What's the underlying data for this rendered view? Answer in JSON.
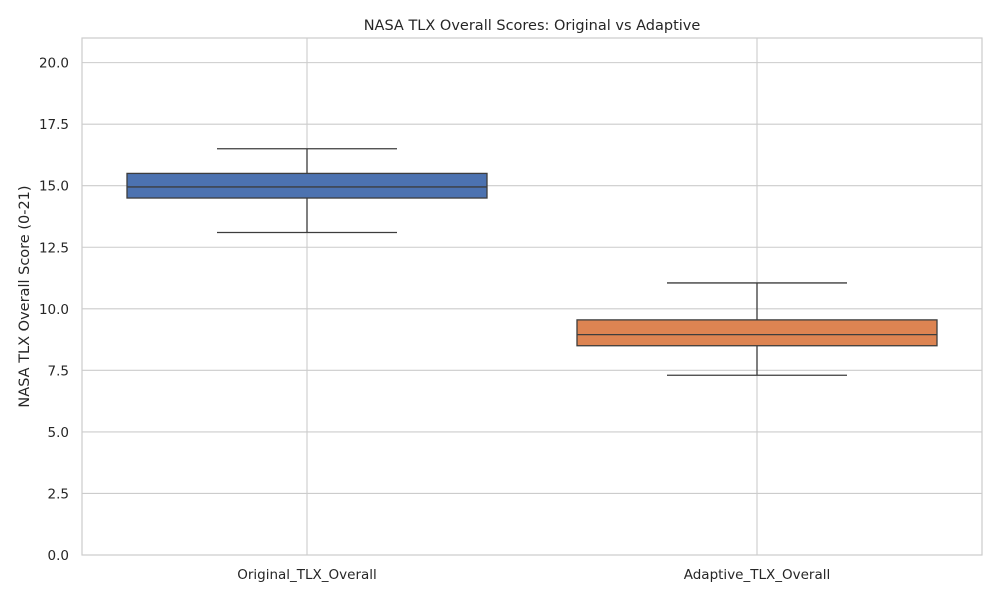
{
  "chart_data": {
    "type": "box",
    "title": "NASA TLX Overall Scores: Original vs Adaptive",
    "xlabel": "",
    "ylabel": "NASA TLX Overall Score (0-21)",
    "ylim": [
      0,
      21
    ],
    "yticks": [
      "0.0",
      "2.5",
      "5.0",
      "7.5",
      "10.0",
      "12.5",
      "15.0",
      "17.5",
      "20.0"
    ],
    "ytick_values": [
      0,
      2.5,
      5,
      7.5,
      10,
      12.5,
      15,
      17.5,
      20
    ],
    "grid": true,
    "categories": [
      "Original_TLX_Overall",
      "Adaptive_TLX_Overall"
    ],
    "boxes": [
      {
        "category": "Original_TLX_Overall",
        "whisker_low": 13.1,
        "q1": 14.5,
        "median": 14.95,
        "q3": 15.5,
        "whisker_high": 16.5,
        "color": "#4c72b0"
      },
      {
        "category": "Adaptive_TLX_Overall",
        "whisker_low": 7.3,
        "q1": 8.5,
        "median": 8.95,
        "q3": 9.55,
        "whisker_high": 11.05,
        "color": "#dd8452"
      }
    ],
    "colors": {
      "grid": "#cccccc",
      "frame": "#cccccc",
      "box_edge": "#3d3d3d",
      "text": "#262626"
    }
  }
}
